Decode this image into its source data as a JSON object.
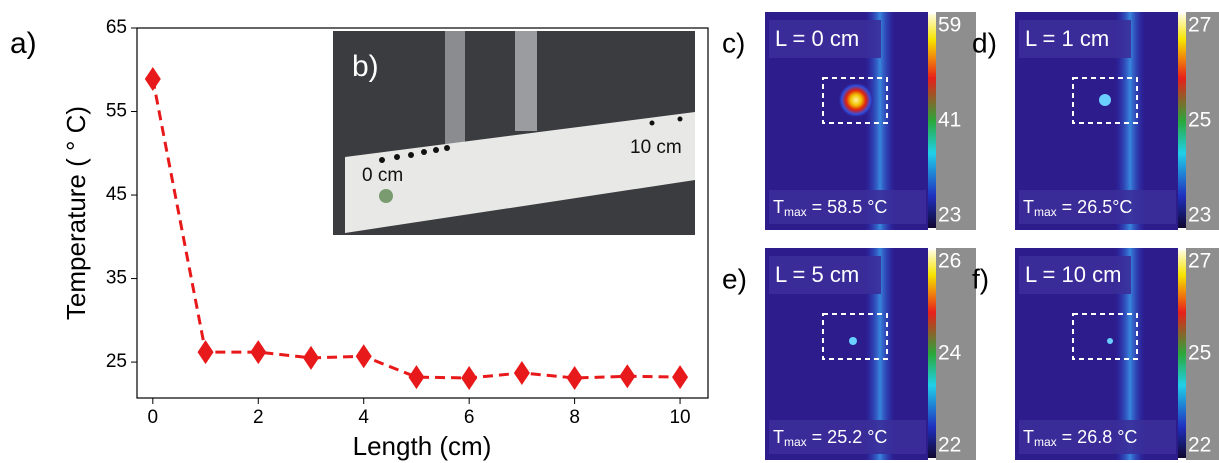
{
  "chart_data": {
    "type": "line",
    "panel_label": "a)",
    "x": [
      0,
      1,
      2,
      3,
      4,
      5,
      6,
      7,
      8,
      9,
      10
    ],
    "values": [
      58.9,
      26.2,
      26.2,
      25.5,
      25.7,
      23.2,
      23.1,
      23.7,
      23.1,
      23.3,
      23.2
    ],
    "color": "#e8191a",
    "xlim": [
      -0.3,
      10.53
    ],
    "ylim": [
      20.7,
      65
    ],
    "xticks": [
      0,
      2,
      4,
      6,
      8,
      10
    ],
    "yticks": [
      25,
      35,
      45,
      55,
      65
    ],
    "xlabel": "Length (cm)",
    "ylabel": "Temperature ( ° C)"
  },
  "photo": {
    "label": "b)",
    "marks": [
      "0 cm",
      "10 cm"
    ]
  },
  "thermal_images": [
    {
      "label": "c)",
      "position": "L = 0 cm",
      "tmax_symbol": "T",
      "tmax_subscript": "max",
      "tmax_value": " = 58.5 °C",
      "colorbar_ticks": [
        "59",
        "41",
        "23"
      ]
    },
    {
      "label": "d)",
      "position": "L = 1 cm",
      "tmax_symbol": "T",
      "tmax_subscript": "max",
      "tmax_value": " = 26.5°C",
      "colorbar_ticks": [
        "27",
        "25",
        "23"
      ]
    },
    {
      "label": "e)",
      "position": "L = 5 cm",
      "tmax_symbol": "T",
      "tmax_subscript": "max",
      "tmax_value": " = 25.2 °C",
      "colorbar_ticks": [
        "26",
        "24",
        "22"
      ]
    },
    {
      "label": "f)",
      "position": "L = 10 cm",
      "tmax_symbol": "T",
      "tmax_subscript": "max",
      "tmax_value": " = 26.8 °C",
      "colorbar_ticks": [
        "27",
        "25",
        "22"
      ]
    }
  ]
}
